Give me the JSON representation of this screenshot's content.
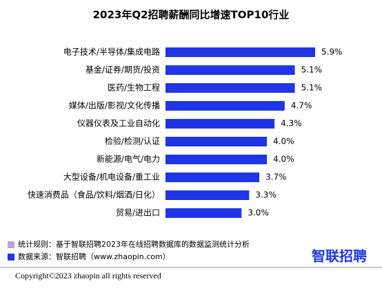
{
  "chart_data": {
    "type": "bar",
    "orientation": "horizontal",
    "title": "2023年Q2招聘薪酬同比增速TOP10行业",
    "categories": [
      "电子技术/半导体/集成电路",
      "基金/证券/期货/投资",
      "医药/生物工程",
      "媒体/出版/影视/文化传播",
      "仪器仪表及工业自动化",
      "检验/检测/认证",
      "新能源/电气/电力",
      "大型设备/机电设备/重工业",
      "快速消费品（食品/饮料/烟酒/日化）",
      "贸易/进出口"
    ],
    "values": [
      5.9,
      5.1,
      5.1,
      4.7,
      4.3,
      4.0,
      4.0,
      3.7,
      3.3,
      3.0
    ],
    "value_labels": [
      "5.9%",
      "5.1%",
      "5.1%",
      "4.7%",
      "4.3%",
      "4.0%",
      "4.0%",
      "3.7%",
      "3.3%",
      "3.0%"
    ],
    "color": "#1f35e6"
  },
  "footer": {
    "notes": [
      {
        "text": "统计规则：基于智联招聘2023年在线招聘数据库的数据监测统计分析",
        "color": "#b4a7d6"
      },
      {
        "text": "数据来源：智联招聘（www.zhaopin.com）",
        "color": "#1f35e6"
      }
    ],
    "logo": "智联招聘",
    "copyright": "Copyright©2023 zhaopin all rights reserved"
  }
}
